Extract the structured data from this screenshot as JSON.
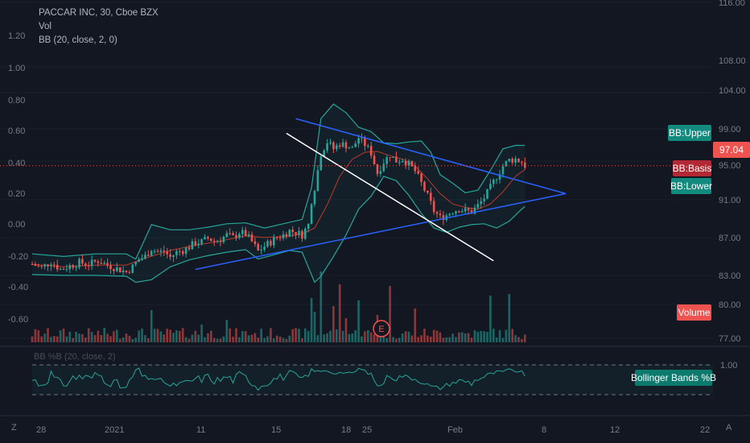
{
  "legend": {
    "symbol_line": "PACCAR INC, 30, Cboe BZX",
    "vol_label": "Vol",
    "bb_label": "BB (20, close, 2, 0)",
    "bbp_label": "BB %B (20, close, 2)"
  },
  "corner": {
    "left": "Z",
    "right": "A"
  },
  "price_axis": {
    "ticks": [
      "116.00",
      "108.00",
      "104.00",
      "99.00",
      "95.00",
      "91.00",
      "87.00",
      "83.00",
      "80.00",
      "77.00"
    ]
  },
  "left_axis": {
    "ticks": [
      "1.20",
      "1.00",
      "0.80",
      "0.60",
      "0.40",
      "0.20",
      "0.00",
      "-0.20",
      "-0.40",
      "-0.60"
    ]
  },
  "time_axis": {
    "ticks": [
      "28",
      "2021",
      "11",
      "15",
      "18",
      "25",
      "Feb",
      "8",
      "12",
      "22"
    ]
  },
  "bbp_axis": {
    "tick": "1.00"
  },
  "tags": {
    "price": "97.04",
    "bb_upper": "BB:Upper",
    "bb_basis": "BB:Basis",
    "bb_lower": "BB:Lower",
    "volume": "Volume",
    "bbp": "Bollinger Bands %B"
  },
  "earnings_marker": "E",
  "colors": {
    "background": "#131722",
    "up": "#26a69a",
    "down": "#ef5350",
    "bb_band": "#26a69a",
    "bb_basis": "#c0392b",
    "trendline_blue": "#2962ff",
    "trendline_white": "#ffffff",
    "price_tag": "#ef5350",
    "basis_tag": "#b22833"
  },
  "chart_data": {
    "type": "candlestick",
    "title": "PACCAR INC, 30, Cboe BZX",
    "price_range": [
      77,
      118
    ],
    "close_series": [
      [
        0,
        85.6
      ],
      [
        3,
        85.2
      ],
      [
        6,
        85.9
      ],
      [
        9,
        85.0
      ],
      [
        12,
        85.4
      ],
      [
        15,
        85.8
      ],
      [
        18,
        85.6
      ],
      [
        21,
        86.0
      ],
      [
        24,
        85.5
      ],
      [
        27,
        85.1
      ],
      [
        30,
        84.7
      ],
      [
        32,
        85.3
      ],
      [
        34,
        86.2
      ],
      [
        36,
        86.5
      ],
      [
        38,
        87.4
      ],
      [
        40,
        87.0
      ],
      [
        42,
        87.1
      ],
      [
        44,
        86.4
      ],
      [
        46,
        87.0
      ],
      [
        48,
        87.2
      ],
      [
        50,
        87.6
      ],
      [
        52,
        88.1
      ],
      [
        54,
        88.2
      ],
      [
        56,
        88.6
      ],
      [
        58,
        88.3
      ],
      [
        60,
        88.5
      ],
      [
        62,
        89.0
      ],
      [
        64,
        88.7
      ],
      [
        66,
        89.3
      ],
      [
        68,
        89.1
      ],
      [
        70,
        88.2
      ],
      [
        72,
        87.1
      ],
      [
        74,
        87.7
      ],
      [
        76,
        88.2
      ],
      [
        78,
        88.7
      ],
      [
        80,
        89.0
      ],
      [
        82,
        89.5
      ],
      [
        84,
        89.3
      ],
      [
        86,
        89.0
      ],
      [
        88,
        90.2
      ],
      [
        89,
        93.0
      ],
      [
        90,
        94.5
      ],
      [
        91,
        96.5
      ],
      [
        92,
        98.5
      ],
      [
        94,
        99.8
      ],
      [
        96,
        99.0
      ],
      [
        98,
        99.6
      ],
      [
        100,
        99.4
      ],
      [
        102,
        99.0
      ],
      [
        104,
        100.3
      ],
      [
        106,
        99.5
      ],
      [
        108,
        98.5
      ],
      [
        110,
        96.2
      ],
      [
        112,
        97.5
      ],
      [
        114,
        98.3
      ],
      [
        116,
        97.6
      ],
      [
        118,
        97.8
      ],
      [
        120,
        97.2
      ],
      [
        122,
        96.4
      ],
      [
        124,
        95.0
      ],
      [
        126,
        93.5
      ],
      [
        128,
        91.8
      ],
      [
        130,
        91.0
      ],
      [
        132,
        91.3
      ],
      [
        134,
        91.8
      ],
      [
        136,
        92.0
      ],
      [
        138,
        91.8
      ],
      [
        140,
        91.7
      ],
      [
        142,
        92.4
      ],
      [
        144,
        93.3
      ],
      [
        146,
        94.5
      ],
      [
        148,
        95.8
      ],
      [
        150,
        97.0
      ],
      [
        152,
        97.7
      ],
      [
        154,
        97.8
      ],
      [
        156,
        97.5
      ],
      [
        157,
        97.04
      ]
    ],
    "bb_upper": [
      [
        0,
        86.8
      ],
      [
        10,
        86.5
      ],
      [
        20,
        86.8
      ],
      [
        30,
        86.8
      ],
      [
        33,
        86.2
      ],
      [
        38,
        90.2
      ],
      [
        44,
        89.6
      ],
      [
        50,
        89.6
      ],
      [
        56,
        89.9
      ],
      [
        62,
        90.3
      ],
      [
        68,
        90.4
      ],
      [
        74,
        89.8
      ],
      [
        80,
        90.3
      ],
      [
        86,
        90.8
      ],
      [
        89,
        94.5
      ],
      [
        92,
        102.5
      ],
      [
        96,
        104.2
      ],
      [
        100,
        103.2
      ],
      [
        104,
        101.5
      ],
      [
        108,
        101.0
      ],
      [
        112,
        99.7
      ],
      [
        116,
        99.6
      ],
      [
        120,
        99.8
      ],
      [
        124,
        99.9
      ],
      [
        127,
        98.6
      ],
      [
        130,
        96.0
      ],
      [
        134,
        95.0
      ],
      [
        138,
        93.9
      ],
      [
        142,
        94.2
      ],
      [
        146,
        96.5
      ],
      [
        150,
        99.0
      ],
      [
        154,
        99.4
      ],
      [
        157,
        99.4
      ]
    ],
    "bb_basis": [
      [
        0,
        85.6
      ],
      [
        10,
        85.3
      ],
      [
        20,
        85.5
      ],
      [
        30,
        85.5
      ],
      [
        36,
        86.3
      ],
      [
        44,
        87.2
      ],
      [
        52,
        87.8
      ],
      [
        60,
        88.3
      ],
      [
        68,
        88.9
      ],
      [
        74,
        88.7
      ],
      [
        80,
        88.8
      ],
      [
        86,
        89.1
      ],
      [
        90,
        89.8
      ],
      [
        94,
        92.5
      ],
      [
        98,
        95.8
      ],
      [
        102,
        97.8
      ],
      [
        106,
        98.6
      ],
      [
        110,
        98.7
      ],
      [
        114,
        98.2
      ],
      [
        118,
        97.8
      ],
      [
        122,
        97.0
      ],
      [
        126,
        95.5
      ],
      [
        130,
        93.8
      ],
      [
        134,
        92.6
      ],
      [
        138,
        92.2
      ],
      [
        142,
        92.0
      ],
      [
        146,
        92.6
      ],
      [
        150,
        94.0
      ],
      [
        154,
        95.8
      ],
      [
        157,
        96.6
      ]
    ],
    "bb_lower": [
      [
        0,
        84.4
      ],
      [
        10,
        84.3
      ],
      [
        20,
        84.3
      ],
      [
        30,
        84.2
      ],
      [
        33,
        83.5
      ],
      [
        38,
        83.8
      ],
      [
        44,
        85.3
      ],
      [
        50,
        86.1
      ],
      [
        56,
        86.6
      ],
      [
        62,
        87.0
      ],
      [
        68,
        87.3
      ],
      [
        72,
        86.2
      ],
      [
        76,
        86.6
      ],
      [
        82,
        87.2
      ],
      [
        86,
        87.0
      ],
      [
        90,
        83.5
      ],
      [
        92,
        84.2
      ],
      [
        96,
        86.5
      ],
      [
        100,
        89.0
      ],
      [
        104,
        92.0
      ],
      [
        108,
        93.5
      ],
      [
        112,
        95.8
      ],
      [
        116,
        95.3
      ],
      [
        120,
        93.6
      ],
      [
        124,
        91.5
      ],
      [
        128,
        89.8
      ],
      [
        132,
        89.3
      ],
      [
        136,
        89.9
      ],
      [
        140,
        90.2
      ],
      [
        144,
        90.3
      ],
      [
        148,
        89.8
      ],
      [
        152,
        90.6
      ],
      [
        156,
        92.0
      ],
      [
        157,
        92.3
      ]
    ],
    "trendlines": [
      {
        "color": "blue",
        "from": [
          52,
          85.0
        ],
        "to": [
          170,
          93.8
        ]
      },
      {
        "color": "blue",
        "from": [
          84,
          102.5
        ],
        "to": [
          170,
          93.8
        ]
      },
      {
        "color": "white",
        "from": [
          81,
          100.8
        ],
        "to": [
          147,
          86.0
        ]
      }
    ],
    "volume_range": [
      0,
      1
    ],
    "bbp_ticks": [
      1.0,
      0.0
    ]
  }
}
